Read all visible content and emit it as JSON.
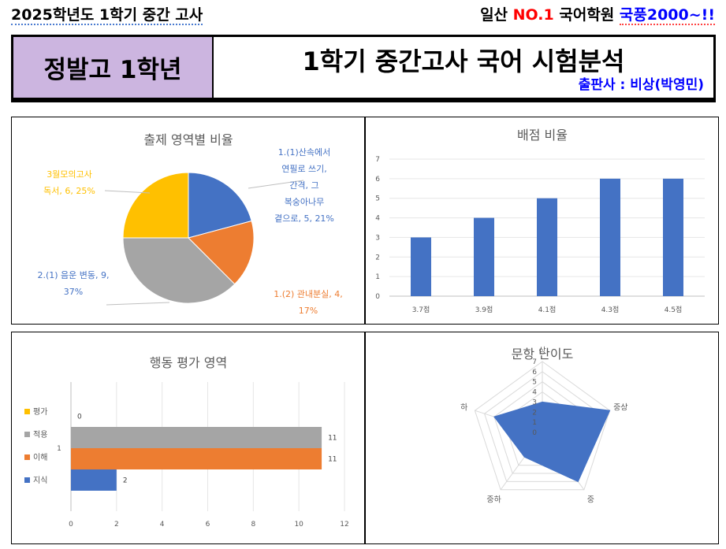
{
  "header": {
    "left_title": "2025학년도 1학기 중간 고사",
    "brand_prefix": "일산",
    "brand_highlight": "NO.1",
    "brand_middle": "국어학원",
    "brand_name": "국풍2000~!!"
  },
  "banner": {
    "school": "정발고 1학년",
    "exam_title": "1학기 중간고사 국어 시험분석",
    "publisher": "출판사 : 비상(박영민)"
  },
  "colors": {
    "blue": "#4472c4",
    "orange": "#ed7d31",
    "gray": "#a5a5a5",
    "yellow": "#ffc000",
    "banner_bg": "#ccb5e0"
  },
  "chart_data": [
    {
      "id": "pie",
      "type": "pie",
      "title": "출제 영역별 비율",
      "slices": [
        {
          "label_lines": [
            "1.(1)산속에서",
            "연필로 쓰기,",
            "간격, 그",
            "복숭아나무",
            "곁으로, 5, 21%"
          ],
          "value": 5,
          "percent": 21,
          "color": "#4472c4"
        },
        {
          "label_lines": [
            "1.(2) 관내분실, 4,",
            "17%"
          ],
          "value": 4,
          "percent": 17,
          "color": "#ed7d31"
        },
        {
          "label_lines": [
            "2.(1) 음운 변동, 9,",
            "37%"
          ],
          "value": 9,
          "percent": 37,
          "color": "#a5a5a5"
        },
        {
          "label_lines": [
            "3월모의고사",
            "독서, 6, 25%"
          ],
          "value": 6,
          "percent": 25,
          "color": "#ffc000"
        }
      ]
    },
    {
      "id": "bar",
      "type": "bar",
      "title": "배점 비율",
      "categories": [
        "3.7점",
        "3.9점",
        "4.1점",
        "4.3점",
        "4.5점"
      ],
      "values": [
        3,
        4,
        5,
        6,
        6
      ],
      "yticks": [
        "0",
        "1",
        "2",
        "3",
        "4",
        "5",
        "6",
        "7"
      ],
      "ylim": [
        0,
        7
      ],
      "color": "#4472c4"
    },
    {
      "id": "hbar",
      "type": "bar",
      "orientation": "horizontal",
      "title": "행동 평가 영역",
      "category": "1",
      "series": [
        {
          "name": "지식",
          "value": 2,
          "label": "2",
          "color": "#4472c4"
        },
        {
          "name": "이해",
          "value": 11,
          "label": "11",
          "color": "#ed7d31"
        },
        {
          "name": "적용",
          "value": 11,
          "label": "11",
          "color": "#a5a5a5"
        },
        {
          "name": "평가",
          "value": 0,
          "label": "0",
          "color": "#ffc000"
        }
      ],
      "xticks": [
        "0",
        "2",
        "4",
        "6",
        "8",
        "10",
        "12"
      ],
      "xlim": [
        0,
        12
      ]
    },
    {
      "id": "radar",
      "type": "radar",
      "title": "문항 난이도",
      "axes": [
        "상",
        "중상",
        "중",
        "중하",
        "하"
      ],
      "values": [
        3,
        7,
        6,
        3,
        5
      ],
      "rticks": [
        "0",
        "1",
        "2",
        "3",
        "4",
        "5",
        "6",
        "7"
      ],
      "rlim": [
        0,
        7
      ],
      "color": "#4472c4"
    }
  ]
}
